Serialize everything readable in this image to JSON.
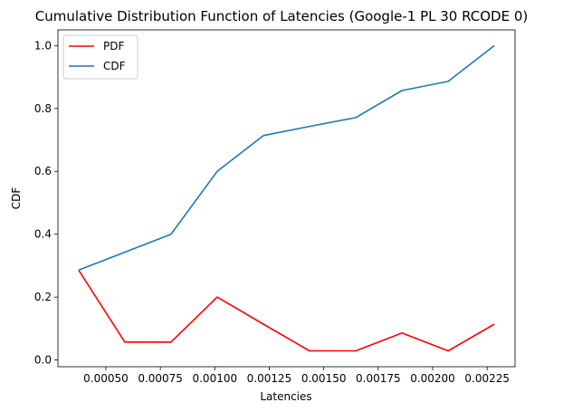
{
  "chart_data": {
    "type": "line",
    "title": "Cumulative Distribution Function of Latencies (Google-1 PL 30 RCODE 0)",
    "xlabel": "Latencies",
    "ylabel": "CDF",
    "x": [
      0.000375,
      0.000587,
      0.000799,
      0.001011,
      0.001223,
      0.001435,
      0.001647,
      0.001859,
      0.002071,
      0.002283
    ],
    "series": [
      {
        "name": "PDF",
        "color": "#ff0000",
        "values": [
          0.286,
          0.057,
          0.057,
          0.2,
          0.114,
          0.029,
          0.029,
          0.086,
          0.029,
          0.114
        ]
      },
      {
        "name": "CDF",
        "color": "#1f77b4",
        "values": [
          0.286,
          0.343,
          0.4,
          0.6,
          0.714,
          0.743,
          0.771,
          0.857,
          0.886,
          1.0
        ]
      }
    ],
    "xlim": [
      0.00028,
      0.002378
    ],
    "ylim": [
      -0.0214,
      1.05
    ],
    "xticks": [
      0.0005,
      0.00075,
      0.001,
      0.00125,
      0.0015,
      0.00175,
      0.002,
      0.00225
    ],
    "xtick_labels": [
      "0.00050",
      "0.00075",
      "0.00100",
      "0.00125",
      "0.00150",
      "0.00175",
      "0.00200",
      "0.00225"
    ],
    "yticks": [
      0.0,
      0.2,
      0.4,
      0.6,
      0.8,
      1.0
    ],
    "ytick_labels": [
      "0.0",
      "0.2",
      "0.4",
      "0.6",
      "0.8",
      "1.0"
    ],
    "legend_position": "upper-left",
    "grid": false
  }
}
